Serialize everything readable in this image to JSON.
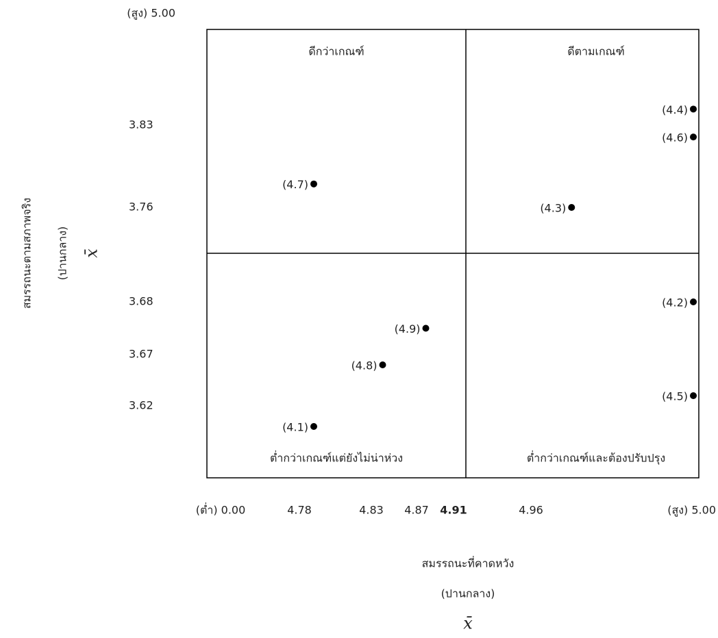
{
  "chart_data": {
    "type": "scatter",
    "x_axis_title": "สมรรถนะที่คาดหวัง",
    "x_axis_subtitle": "(ปานกลาง)",
    "x_axis_symbol": "x̄",
    "y_axis_title": "สมรรถนะตามสภาพจริง",
    "y_axis_subtitle": "(ปานกลาง)",
    "y_axis_symbol": "x̄",
    "quadrants": [
      "ดีกว่าเกณฑ์",
      "ดีตามเกณฑ์",
      "ต่ำกว่าเกณฑ์แต่ยังไม่น่าห่วง",
      "ต่ำกว่าเกณฑ์และต้องปรับปรุง"
    ],
    "xticks": [
      {
        "value": 0,
        "label": "(ต่ำ) 0.00"
      },
      4.78,
      4.83,
      4.87,
      4.91,
      4.96,
      {
        "value": 5,
        "label": "(สูง) 5.00"
      }
    ],
    "yticks": [
      {
        "value": 5,
        "label": "(สูง) 5.00"
      },
      3.83,
      3.76,
      3.68,
      3.67,
      3.62
    ],
    "point_labels": [
      "(4.7)",
      "(4.4)",
      "(4.6)",
      "(4.3)",
      "(4.2)",
      "(4.9)",
      "(4.8)",
      "(4.5)",
      "(4.1)"
    ],
    "x": [
      4.79,
      5.0,
      5.0,
      4.97,
      5.0,
      4.88,
      4.84,
      5.0,
      4.79
    ],
    "y": [
      3.78,
      4.0,
      3.82,
      3.76,
      3.68,
      3.675,
      3.66,
      3.63,
      3.6
    ],
    "color": "#000000"
  }
}
